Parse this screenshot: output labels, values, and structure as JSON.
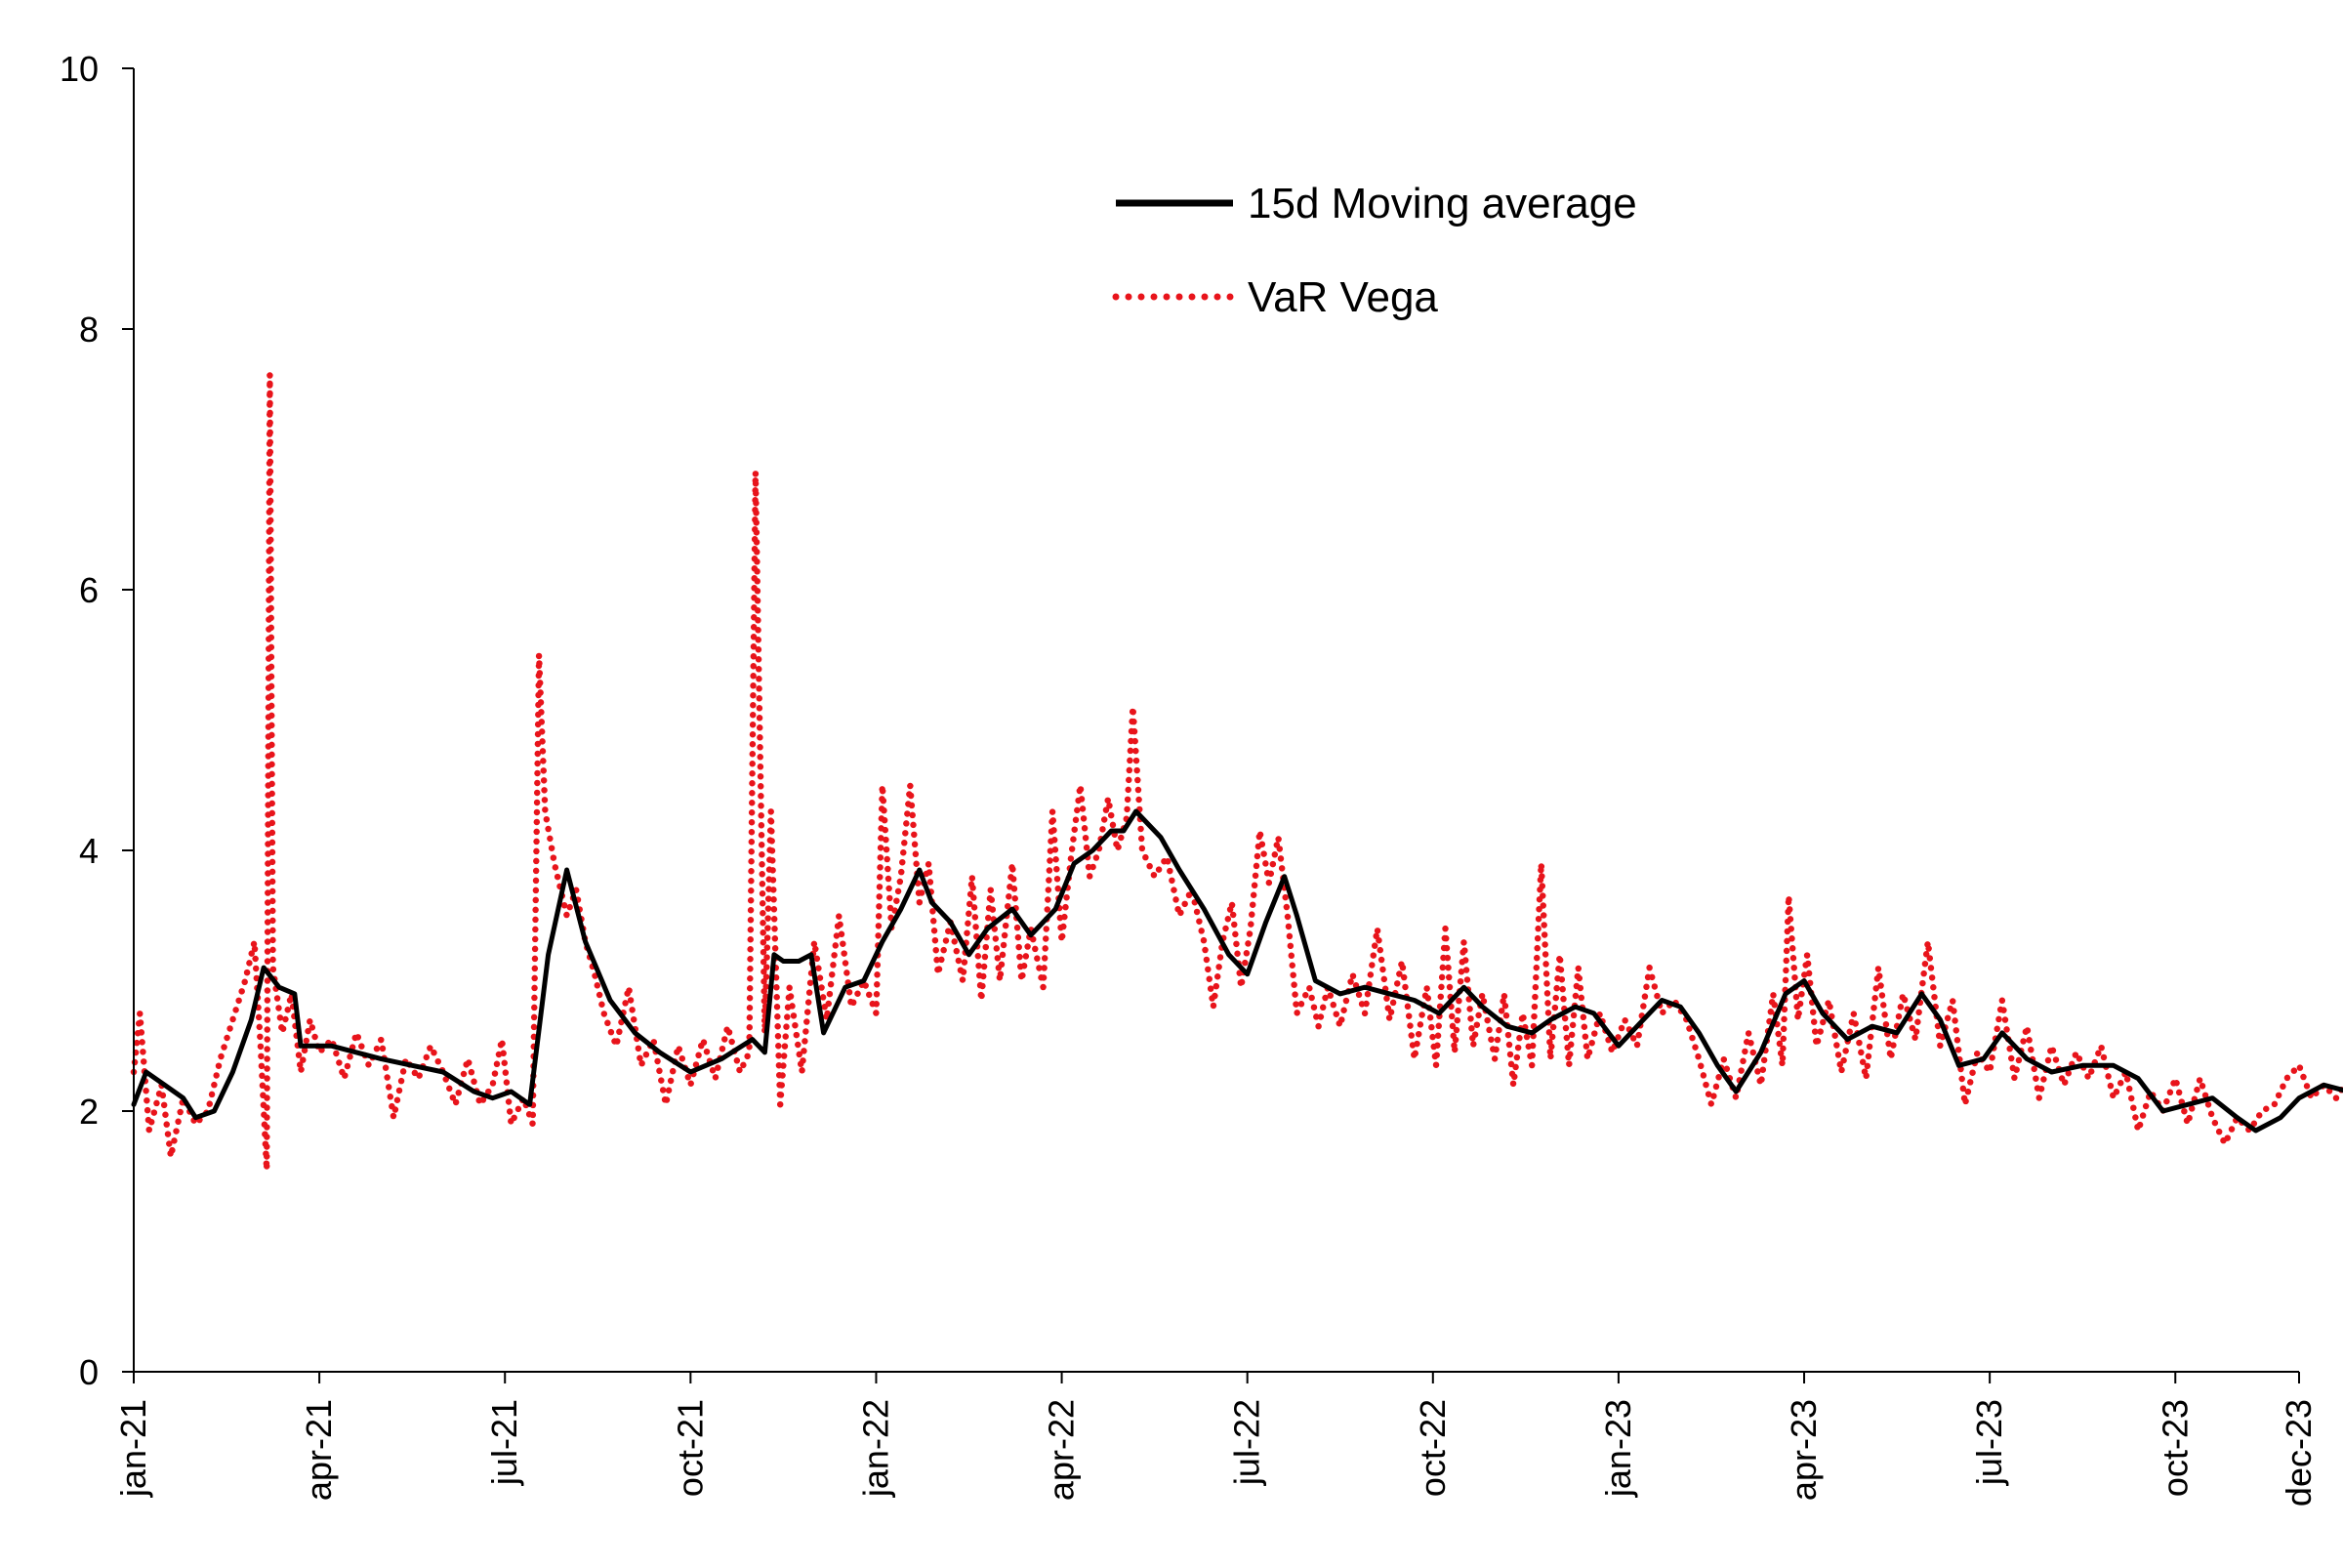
{
  "chart_data": {
    "type": "line",
    "title": "",
    "xlabel": "",
    "ylabel": "",
    "ylim": [
      0,
      10
    ],
    "yticks": [
      "0",
      "2",
      "4",
      "6",
      "8",
      "10"
    ],
    "x_ticks": [
      "jan-21",
      "apr-21",
      "jul-21",
      "oct-21",
      "jan-22",
      "apr-22",
      "jul-22",
      "oct-22",
      "jan-23",
      "apr-23",
      "jul-23",
      "oct-23",
      "dec-23"
    ],
    "x_tick_months": [
      0,
      3,
      6,
      9,
      12,
      15,
      18,
      21,
      24,
      27,
      30,
      33,
      35
    ],
    "x_range_months": [
      0,
      35
    ],
    "legend_position": "top-center",
    "series": [
      {
        "name": "15d Moving average",
        "color": "#000000",
        "style": "solid",
        "points": [
          [
            0.0,
            2.05
          ],
          [
            0.2,
            2.3
          ],
          [
            0.5,
            2.2
          ],
          [
            0.8,
            2.1
          ],
          [
            1.0,
            1.95
          ],
          [
            1.3,
            2.0
          ],
          [
            1.6,
            2.3
          ],
          [
            1.9,
            2.7
          ],
          [
            2.1,
            3.1
          ],
          [
            2.35,
            2.95
          ],
          [
            2.6,
            2.9
          ],
          [
            2.7,
            2.5
          ],
          [
            3.2,
            2.5
          ],
          [
            3.6,
            2.45
          ],
          [
            4.0,
            2.4
          ],
          [
            4.5,
            2.35
          ],
          [
            5.0,
            2.3
          ],
          [
            5.5,
            2.15
          ],
          [
            5.8,
            2.1
          ],
          [
            6.1,
            2.15
          ],
          [
            6.4,
            2.05
          ],
          [
            6.7,
            3.2
          ],
          [
            7.0,
            3.85
          ],
          [
            7.3,
            3.3
          ],
          [
            7.7,
            2.85
          ],
          [
            8.1,
            2.6
          ],
          [
            8.5,
            2.45
          ],
          [
            9.0,
            2.3
          ],
          [
            9.5,
            2.4
          ],
          [
            10.0,
            2.55
          ],
          [
            10.2,
            2.45
          ],
          [
            10.35,
            3.2
          ],
          [
            10.5,
            3.15
          ],
          [
            10.75,
            3.15
          ],
          [
            10.95,
            3.2
          ],
          [
            11.15,
            2.6
          ],
          [
            11.5,
            2.95
          ],
          [
            11.8,
            3.0
          ],
          [
            12.1,
            3.3
          ],
          [
            12.4,
            3.55
          ],
          [
            12.7,
            3.85
          ],
          [
            12.9,
            3.6
          ],
          [
            13.2,
            3.45
          ],
          [
            13.5,
            3.2
          ],
          [
            13.8,
            3.4
          ],
          [
            14.2,
            3.55
          ],
          [
            14.5,
            3.35
          ],
          [
            14.9,
            3.55
          ],
          [
            15.2,
            3.9
          ],
          [
            15.5,
            4.0
          ],
          [
            15.8,
            4.15
          ],
          [
            16.0,
            4.15
          ],
          [
            16.2,
            4.3
          ],
          [
            16.6,
            4.1
          ],
          [
            16.9,
            3.85
          ],
          [
            17.3,
            3.55
          ],
          [
            17.7,
            3.2
          ],
          [
            18.0,
            3.05
          ],
          [
            18.3,
            3.45
          ],
          [
            18.6,
            3.8
          ],
          [
            18.8,
            3.5
          ],
          [
            19.1,
            3.0
          ],
          [
            19.5,
            2.9
          ],
          [
            19.9,
            2.95
          ],
          [
            20.3,
            2.9
          ],
          [
            20.7,
            2.85
          ],
          [
            21.1,
            2.75
          ],
          [
            21.5,
            2.95
          ],
          [
            21.8,
            2.8
          ],
          [
            22.2,
            2.65
          ],
          [
            22.6,
            2.6
          ],
          [
            22.9,
            2.7
          ],
          [
            23.3,
            2.8
          ],
          [
            23.6,
            2.75
          ],
          [
            24.0,
            2.5
          ],
          [
            24.3,
            2.65
          ],
          [
            24.7,
            2.85
          ],
          [
            25.0,
            2.8
          ],
          [
            25.3,
            2.6
          ],
          [
            25.6,
            2.35
          ],
          [
            25.9,
            2.15
          ],
          [
            26.3,
            2.45
          ],
          [
            26.7,
            2.9
          ],
          [
            27.0,
            3.0
          ],
          [
            27.3,
            2.75
          ],
          [
            27.7,
            2.55
          ],
          [
            28.1,
            2.65
          ],
          [
            28.5,
            2.6
          ],
          [
            28.9,
            2.9
          ],
          [
            29.2,
            2.7
          ],
          [
            29.5,
            2.35
          ],
          [
            29.9,
            2.4
          ],
          [
            30.2,
            2.6
          ],
          [
            30.6,
            2.4
          ],
          [
            31.0,
            2.3
          ],
          [
            31.5,
            2.35
          ],
          [
            32.0,
            2.35
          ],
          [
            32.4,
            2.25
          ],
          [
            32.8,
            2.0
          ],
          [
            33.2,
            2.05
          ],
          [
            33.6,
            2.1
          ],
          [
            34.0,
            1.95
          ],
          [
            34.3,
            1.85
          ],
          [
            34.7,
            1.95
          ],
          [
            35.0,
            2.1
          ],
          [
            35.4,
            2.2
          ],
          [
            35.8,
            2.15
          ]
        ]
      },
      {
        "name": "VaR Vega",
        "color": "#e8141b",
        "style": "dotted",
        "points": [
          [
            0.0,
            2.3
          ],
          [
            0.1,
            2.75
          ],
          [
            0.25,
            1.85
          ],
          [
            0.45,
            2.2
          ],
          [
            0.6,
            1.65
          ],
          [
            0.8,
            2.1
          ],
          [
            1.0,
            1.9
          ],
          [
            1.2,
            2.0
          ],
          [
            1.4,
            2.4
          ],
          [
            1.6,
            2.7
          ],
          [
            1.8,
            3.0
          ],
          [
            1.95,
            3.3
          ],
          [
            2.05,
            2.5
          ],
          [
            2.15,
            1.55
          ],
          [
            2.2,
            7.65
          ],
          [
            2.25,
            3.1
          ],
          [
            2.4,
            2.6
          ],
          [
            2.55,
            2.9
          ],
          [
            2.7,
            2.3
          ],
          [
            2.85,
            2.7
          ],
          [
            3.0,
            2.45
          ],
          [
            3.2,
            2.55
          ],
          [
            3.4,
            2.25
          ],
          [
            3.6,
            2.6
          ],
          [
            3.8,
            2.35
          ],
          [
            4.0,
            2.55
          ],
          [
            4.2,
            1.95
          ],
          [
            4.4,
            2.4
          ],
          [
            4.6,
            2.25
          ],
          [
            4.8,
            2.5
          ],
          [
            5.0,
            2.3
          ],
          [
            5.2,
            2.05
          ],
          [
            5.4,
            2.4
          ],
          [
            5.6,
            2.05
          ],
          [
            5.8,
            2.2
          ],
          [
            5.95,
            2.55
          ],
          [
            6.1,
            1.9
          ],
          [
            6.3,
            2.1
          ],
          [
            6.45,
            1.9
          ],
          [
            6.55,
            5.5
          ],
          [
            6.65,
            4.3
          ],
          [
            6.8,
            3.9
          ],
          [
            7.0,
            3.5
          ],
          [
            7.15,
            3.7
          ],
          [
            7.3,
            3.3
          ],
          [
            7.45,
            3.05
          ],
          [
            7.6,
            2.75
          ],
          [
            7.8,
            2.5
          ],
          [
            8.0,
            2.95
          ],
          [
            8.2,
            2.35
          ],
          [
            8.4,
            2.55
          ],
          [
            8.6,
            2.05
          ],
          [
            8.8,
            2.5
          ],
          [
            9.0,
            2.2
          ],
          [
            9.2,
            2.55
          ],
          [
            9.4,
            2.25
          ],
          [
            9.6,
            2.65
          ],
          [
            9.8,
            2.3
          ],
          [
            9.95,
            2.45
          ],
          [
            10.05,
            6.9
          ],
          [
            10.2,
            2.6
          ],
          [
            10.3,
            4.3
          ],
          [
            10.45,
            2.05
          ],
          [
            10.6,
            2.95
          ],
          [
            10.8,
            2.3
          ],
          [
            11.0,
            3.3
          ],
          [
            11.2,
            2.7
          ],
          [
            11.4,
            3.5
          ],
          [
            11.6,
            2.8
          ],
          [
            11.8,
            3.0
          ],
          [
            12.0,
            2.75
          ],
          [
            12.1,
            4.5
          ],
          [
            12.25,
            3.4
          ],
          [
            12.4,
            3.8
          ],
          [
            12.55,
            4.5
          ],
          [
            12.7,
            3.6
          ],
          [
            12.85,
            3.9
          ],
          [
            13.0,
            3.05
          ],
          [
            13.2,
            3.45
          ],
          [
            13.4,
            3.0
          ],
          [
            13.55,
            3.8
          ],
          [
            13.7,
            2.85
          ],
          [
            13.85,
            3.7
          ],
          [
            14.0,
            3.0
          ],
          [
            14.2,
            3.9
          ],
          [
            14.35,
            3.0
          ],
          [
            14.5,
            3.4
          ],
          [
            14.7,
            2.95
          ],
          [
            14.85,
            4.3
          ],
          [
            15.0,
            3.3
          ],
          [
            15.15,
            3.95
          ],
          [
            15.3,
            4.5
          ],
          [
            15.45,
            3.8
          ],
          [
            15.6,
            4.0
          ],
          [
            15.75,
            4.4
          ],
          [
            15.9,
            4.0
          ],
          [
            16.05,
            4.25
          ],
          [
            16.15,
            5.1
          ],
          [
            16.3,
            4.0
          ],
          [
            16.5,
            3.8
          ],
          [
            16.7,
            3.95
          ],
          [
            16.9,
            3.5
          ],
          [
            17.1,
            3.7
          ],
          [
            17.3,
            3.3
          ],
          [
            17.45,
            2.8
          ],
          [
            17.6,
            3.3
          ],
          [
            17.75,
            3.6
          ],
          [
            17.9,
            2.95
          ],
          [
            18.05,
            3.4
          ],
          [
            18.2,
            4.15
          ],
          [
            18.35,
            3.75
          ],
          [
            18.5,
            4.1
          ],
          [
            18.65,
            3.5
          ],
          [
            18.8,
            2.75
          ],
          [
            19.0,
            2.95
          ],
          [
            19.15,
            2.65
          ],
          [
            19.3,
            2.95
          ],
          [
            19.5,
            2.65
          ],
          [
            19.7,
            3.05
          ],
          [
            19.9,
            2.75
          ],
          [
            20.1,
            3.4
          ],
          [
            20.3,
            2.7
          ],
          [
            20.5,
            3.15
          ],
          [
            20.7,
            2.4
          ],
          [
            20.9,
            2.95
          ],
          [
            21.05,
            2.35
          ],
          [
            21.2,
            3.4
          ],
          [
            21.35,
            2.45
          ],
          [
            21.5,
            3.3
          ],
          [
            21.65,
            2.5
          ],
          [
            21.8,
            2.9
          ],
          [
            22.0,
            2.4
          ],
          [
            22.15,
            2.9
          ],
          [
            22.3,
            2.2
          ],
          [
            22.45,
            2.75
          ],
          [
            22.6,
            2.35
          ],
          [
            22.75,
            3.9
          ],
          [
            22.9,
            2.4
          ],
          [
            23.05,
            3.2
          ],
          [
            23.2,
            2.35
          ],
          [
            23.35,
            3.1
          ],
          [
            23.5,
            2.4
          ],
          [
            23.7,
            2.75
          ],
          [
            23.9,
            2.45
          ],
          [
            24.1,
            2.7
          ],
          [
            24.3,
            2.5
          ],
          [
            24.5,
            3.1
          ],
          [
            24.7,
            2.75
          ],
          [
            24.9,
            2.85
          ],
          [
            25.1,
            2.7
          ],
          [
            25.3,
            2.4
          ],
          [
            25.5,
            2.05
          ],
          [
            25.7,
            2.4
          ],
          [
            25.9,
            2.1
          ],
          [
            26.1,
            2.6
          ],
          [
            26.3,
            2.2
          ],
          [
            26.5,
            2.9
          ],
          [
            26.65,
            2.35
          ],
          [
            26.75,
            3.65
          ],
          [
            26.9,
            2.7
          ],
          [
            27.05,
            3.2
          ],
          [
            27.2,
            2.5
          ],
          [
            27.4,
            2.85
          ],
          [
            27.6,
            2.3
          ],
          [
            27.8,
            2.75
          ],
          [
            28.0,
            2.25
          ],
          [
            28.2,
            3.1
          ],
          [
            28.4,
            2.4
          ],
          [
            28.6,
            2.9
          ],
          [
            28.8,
            2.55
          ],
          [
            29.0,
            3.3
          ],
          [
            29.2,
            2.5
          ],
          [
            29.4,
            2.85
          ],
          [
            29.6,
            2.05
          ],
          [
            29.8,
            2.45
          ],
          [
            30.0,
            2.3
          ],
          [
            30.2,
            2.85
          ],
          [
            30.4,
            2.25
          ],
          [
            30.6,
            2.65
          ],
          [
            30.8,
            2.1
          ],
          [
            31.0,
            2.5
          ],
          [
            31.2,
            2.2
          ],
          [
            31.4,
            2.45
          ],
          [
            31.6,
            2.25
          ],
          [
            31.8,
            2.5
          ],
          [
            32.0,
            2.1
          ],
          [
            32.2,
            2.3
          ],
          [
            32.4,
            1.85
          ],
          [
            32.6,
            2.15
          ],
          [
            32.8,
            2.0
          ],
          [
            33.0,
            2.25
          ],
          [
            33.2,
            1.9
          ],
          [
            33.4,
            2.25
          ],
          [
            33.6,
            1.95
          ],
          [
            33.8,
            1.75
          ],
          [
            34.0,
            1.95
          ],
          [
            34.2,
            1.85
          ],
          [
            34.4,
            2.0
          ],
          [
            34.6,
            2.05
          ],
          [
            34.8,
            2.25
          ],
          [
            35.0,
            2.35
          ],
          [
            35.2,
            2.1
          ],
          [
            35.4,
            2.2
          ],
          [
            35.6,
            2.1
          ],
          [
            35.8,
            2.25
          ]
        ]
      }
    ]
  }
}
